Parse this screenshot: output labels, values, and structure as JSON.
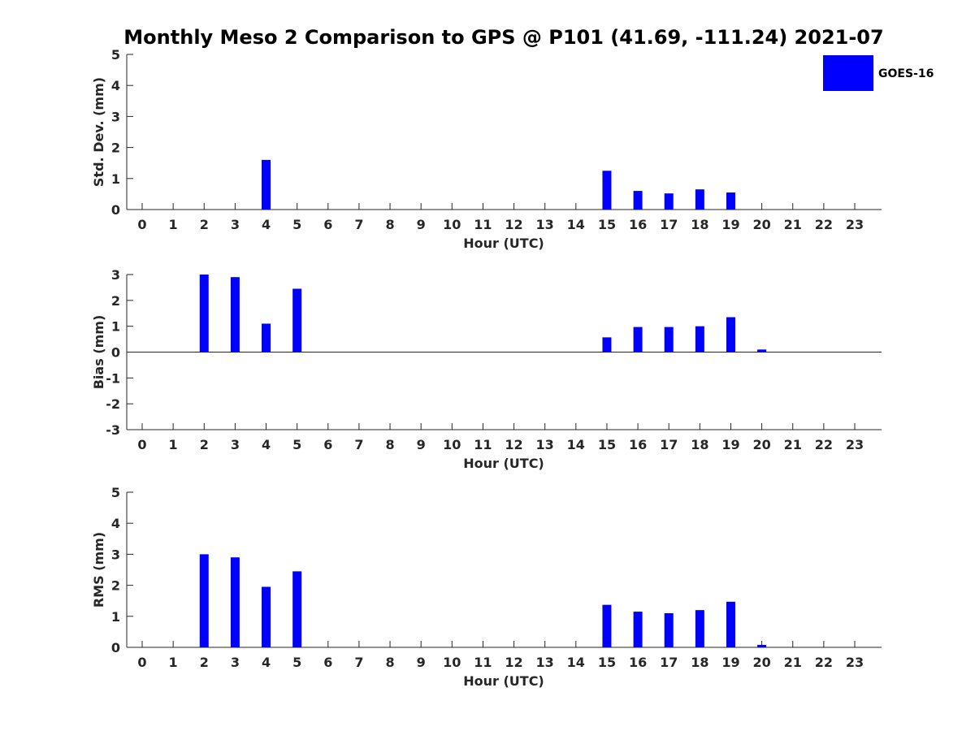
{
  "chart_data": {
    "type": "bar",
    "title": "Monthly Meso 2 Comparison to GPS @ P101 (41.69, -111.24) 2021-07",
    "legend": {
      "placement": "top-right",
      "entries": [
        "GOES-16"
      ]
    },
    "colors": {
      "series": "#0000ff",
      "axis": "#262626",
      "text": "#000000"
    },
    "panels": [
      {
        "id": "stddev",
        "ylabel": "Std. Dev. (mm)",
        "xlabel": "Hour (UTC)",
        "ylim": [
          0,
          5
        ],
        "yticks": [
          "0",
          "1",
          "2",
          "3",
          "4",
          "5"
        ],
        "x": [
          0,
          1,
          2,
          3,
          4,
          5,
          6,
          7,
          8,
          9,
          10,
          11,
          12,
          13,
          14,
          15,
          16,
          17,
          18,
          19,
          20,
          21,
          22,
          23
        ],
        "xtick_labels": [
          "0",
          "1",
          "2",
          "3",
          "4",
          "5",
          "6",
          "7",
          "8",
          "9",
          "10",
          "11",
          "12",
          "13",
          "14",
          "15",
          "16",
          "17",
          "18",
          "19",
          "20",
          "21",
          "22",
          "23"
        ],
        "series": [
          {
            "name": "GOES-16",
            "values": [
              0,
              0,
              0,
              0,
              1.6,
              0,
              0,
              0,
              0,
              0,
              0,
              0,
              0,
              0,
              0,
              1.25,
              0.6,
              0.52,
              0.65,
              0.55,
              0,
              0,
              0,
              0
            ]
          }
        ]
      },
      {
        "id": "bias",
        "ylabel": "Bias (mm)",
        "xlabel": "Hour (UTC)",
        "ylim": [
          -3,
          3
        ],
        "yticks": [
          "-3",
          "-2",
          "-1",
          "0",
          "1",
          "2",
          "3"
        ],
        "zero_line": true,
        "x": [
          0,
          1,
          2,
          3,
          4,
          5,
          6,
          7,
          8,
          9,
          10,
          11,
          12,
          13,
          14,
          15,
          16,
          17,
          18,
          19,
          20,
          21,
          22,
          23
        ],
        "xtick_labels": [
          "0",
          "1",
          "2",
          "3",
          "4",
          "5",
          "6",
          "7",
          "8",
          "9",
          "10",
          "11",
          "12",
          "13",
          "14",
          "15",
          "16",
          "17",
          "18",
          "19",
          "20",
          "21",
          "22",
          "23"
        ],
        "series": [
          {
            "name": "GOES-16",
            "values": [
              0,
              0,
              3.0,
              2.9,
              1.1,
              2.45,
              0,
              0,
              0,
              0,
              0,
              0,
              0,
              0,
              0,
              0.57,
              0.97,
              0.97,
              1.0,
              1.35,
              0.1,
              0,
              0,
              0
            ]
          }
        ]
      },
      {
        "id": "rms",
        "ylabel": "RMS (mm)",
        "xlabel": "Hour (UTC)",
        "ylim": [
          0,
          5
        ],
        "yticks": [
          "0",
          "1",
          "2",
          "3",
          "4",
          "5"
        ],
        "x": [
          0,
          1,
          2,
          3,
          4,
          5,
          6,
          7,
          8,
          9,
          10,
          11,
          12,
          13,
          14,
          15,
          16,
          17,
          18,
          19,
          20,
          21,
          22,
          23
        ],
        "xtick_labels": [
          "0",
          "1",
          "2",
          "3",
          "4",
          "5",
          "6",
          "7",
          "8",
          "9",
          "10",
          "11",
          "12",
          "13",
          "14",
          "15",
          "16",
          "17",
          "18",
          "19",
          "20",
          "21",
          "22",
          "23"
        ],
        "series": [
          {
            "name": "GOES-16",
            "values": [
              0,
              0,
              3.0,
              2.9,
              1.95,
              2.45,
              0,
              0,
              0,
              0,
              0,
              0,
              0,
              0,
              0,
              1.37,
              1.15,
              1.1,
              1.2,
              1.47,
              0.08,
              0,
              0,
              0
            ]
          }
        ]
      }
    ]
  }
}
